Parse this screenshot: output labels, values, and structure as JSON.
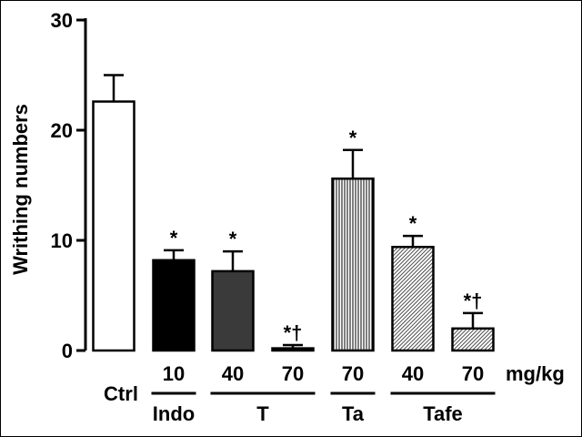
{
  "chart_data": {
    "type": "bar",
    "ylabel": "Writhing numbers",
    "ylim": [
      0,
      30
    ],
    "yticks": [
      0,
      10,
      20,
      30
    ],
    "dose_unit": "mg/kg",
    "categories": [
      {
        "group": "Ctrl",
        "dose": "",
        "value": 22.6,
        "error": 2.4,
        "sig": "",
        "fill": "white"
      },
      {
        "group": "Indo",
        "dose": "10",
        "value": 8.2,
        "error": 0.9,
        "sig": "*",
        "fill": "black"
      },
      {
        "group": "T",
        "dose": "40",
        "value": 7.2,
        "error": 1.8,
        "sig": "*",
        "fill": "darkgray"
      },
      {
        "group": "T",
        "dose": "70",
        "value": 0.2,
        "error": 0.3,
        "sig": "*†",
        "fill": "darkgray"
      },
      {
        "group": "Ta",
        "dose": "70",
        "value": 15.6,
        "error": 2.6,
        "sig": "*",
        "fill": "vertical-stripes"
      },
      {
        "group": "Tafe",
        "dose": "40",
        "value": 9.4,
        "error": 1.0,
        "sig": "*",
        "fill": "diagonal-hatch"
      },
      {
        "group": "Tafe",
        "dose": "70",
        "value": 2.0,
        "error": 1.4,
        "sig": "*†",
        "fill": "diagonal-hatch"
      }
    ],
    "group_labels": [
      "Indo",
      "T",
      "Ta",
      "Tafe"
    ],
    "grid": false
  },
  "colors": {
    "black": "#000000",
    "darkgray": "#3a3a3a",
    "white": "#ffffff"
  }
}
